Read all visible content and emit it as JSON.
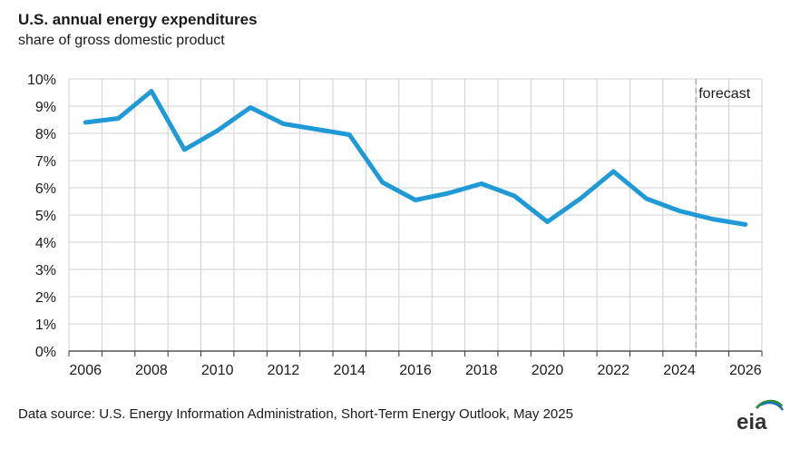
{
  "header": {
    "title": "U.S. annual energy expenditures",
    "subtitle": "share of gross domestic product"
  },
  "footer": {
    "source": "Data source: U.S. Energy Information Administration, Short-Term Energy Outlook, May 2025",
    "logo_text": "eia"
  },
  "chart_data": {
    "type": "line",
    "title": "U.S. annual energy expenditures",
    "subtitle": "share of gross domestic product",
    "xlabel": "",
    "ylabel": "",
    "x": [
      2006,
      2007,
      2008,
      2009,
      2010,
      2011,
      2012,
      2013,
      2014,
      2015,
      2016,
      2017,
      2018,
      2019,
      2020,
      2021,
      2022,
      2023,
      2024,
      2025,
      2026
    ],
    "series": [
      {
        "values": [
          8.4,
          8.55,
          9.55,
          7.4,
          8.1,
          8.95,
          8.35,
          8.15,
          7.95,
          6.2,
          5.55,
          5.8,
          6.15,
          5.7,
          4.75,
          5.6,
          6.6,
          5.6,
          5.15,
          4.85,
          4.65
        ],
        "color": "#1f9ad6"
      }
    ],
    "xticks": [
      "2006",
      "2008",
      "2010",
      "2012",
      "2014",
      "2016",
      "2018",
      "2020",
      "2022",
      "2024",
      "2026"
    ],
    "yticks": [
      "0%",
      "1%",
      "2%",
      "3%",
      "4%",
      "5%",
      "6%",
      "7%",
      "8%",
      "9%",
      "10%"
    ],
    "xlim": [
      2005.5,
      2026.5
    ],
    "ylim": [
      0,
      10
    ],
    "forecast_start": 2024.5,
    "forecast_label": "forecast",
    "grid": true,
    "legend": "none"
  },
  "colors": {
    "line": "#1f9ad6",
    "grid": "#d0d0d0",
    "forecast_divider": "#a0a0a0"
  }
}
